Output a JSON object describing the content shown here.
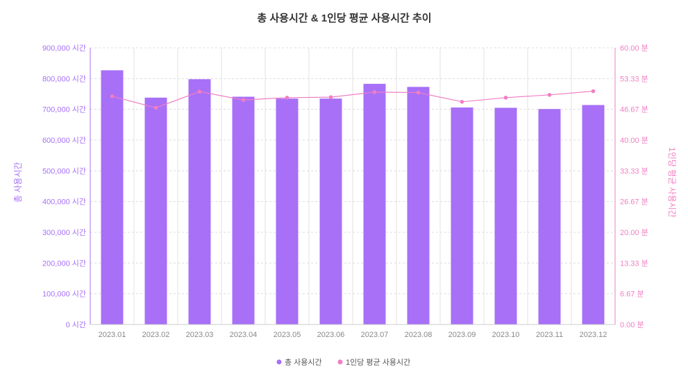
{
  "chart_data": {
    "type": "bar",
    "title": "총 사용시간 & 1인당 평균 사용시간 추이",
    "categories": [
      "2023.01",
      "2023.02",
      "2023.03",
      "2023.04",
      "2023.05",
      "2023.06",
      "2023.07",
      "2023.08",
      "2023.09",
      "2023.10",
      "2023.11",
      "2023.12"
    ],
    "series": [
      {
        "name": "총 사용시간",
        "type": "bar",
        "axis": "left",
        "color": "#a770f7",
        "values": [
          827000,
          738000,
          798000,
          741000,
          735000,
          735000,
          783000,
          773000,
          706000,
          705000,
          701000,
          714000
        ]
      },
      {
        "name": "1인당 평균 사용시간",
        "type": "line",
        "axis": "right",
        "color": "#f07ec4",
        "values": [
          49.5,
          47.0,
          50.5,
          48.7,
          49.2,
          49.3,
          50.4,
          50.3,
          48.3,
          49.2,
          49.8,
          50.6
        ]
      }
    ],
    "left_axis": {
      "label": "총 사용시간",
      "ylim": [
        0,
        900000
      ],
      "ticks": [
        "0 시간",
        "100,000 시간",
        "200,000 시간",
        "300,000 시간",
        "400,000 시간",
        "500,000 시간",
        "600,000 시간",
        "700,000 시간",
        "800,000 시간",
        "900,000 시간"
      ],
      "color": "#a770f7"
    },
    "right_axis": {
      "label": "1인당 평균 사용시간",
      "ylim": [
        0,
        60
      ],
      "ticks": [
        "0.00 분",
        "6.67 분",
        "13.33 분",
        "20.00 분",
        "26.67 분",
        "33.33 분",
        "40.00 분",
        "46.67 분",
        "53.33 분",
        "60.00 분"
      ],
      "color": "#f07ec4"
    },
    "grid": true,
    "legend": "bottom-center"
  }
}
